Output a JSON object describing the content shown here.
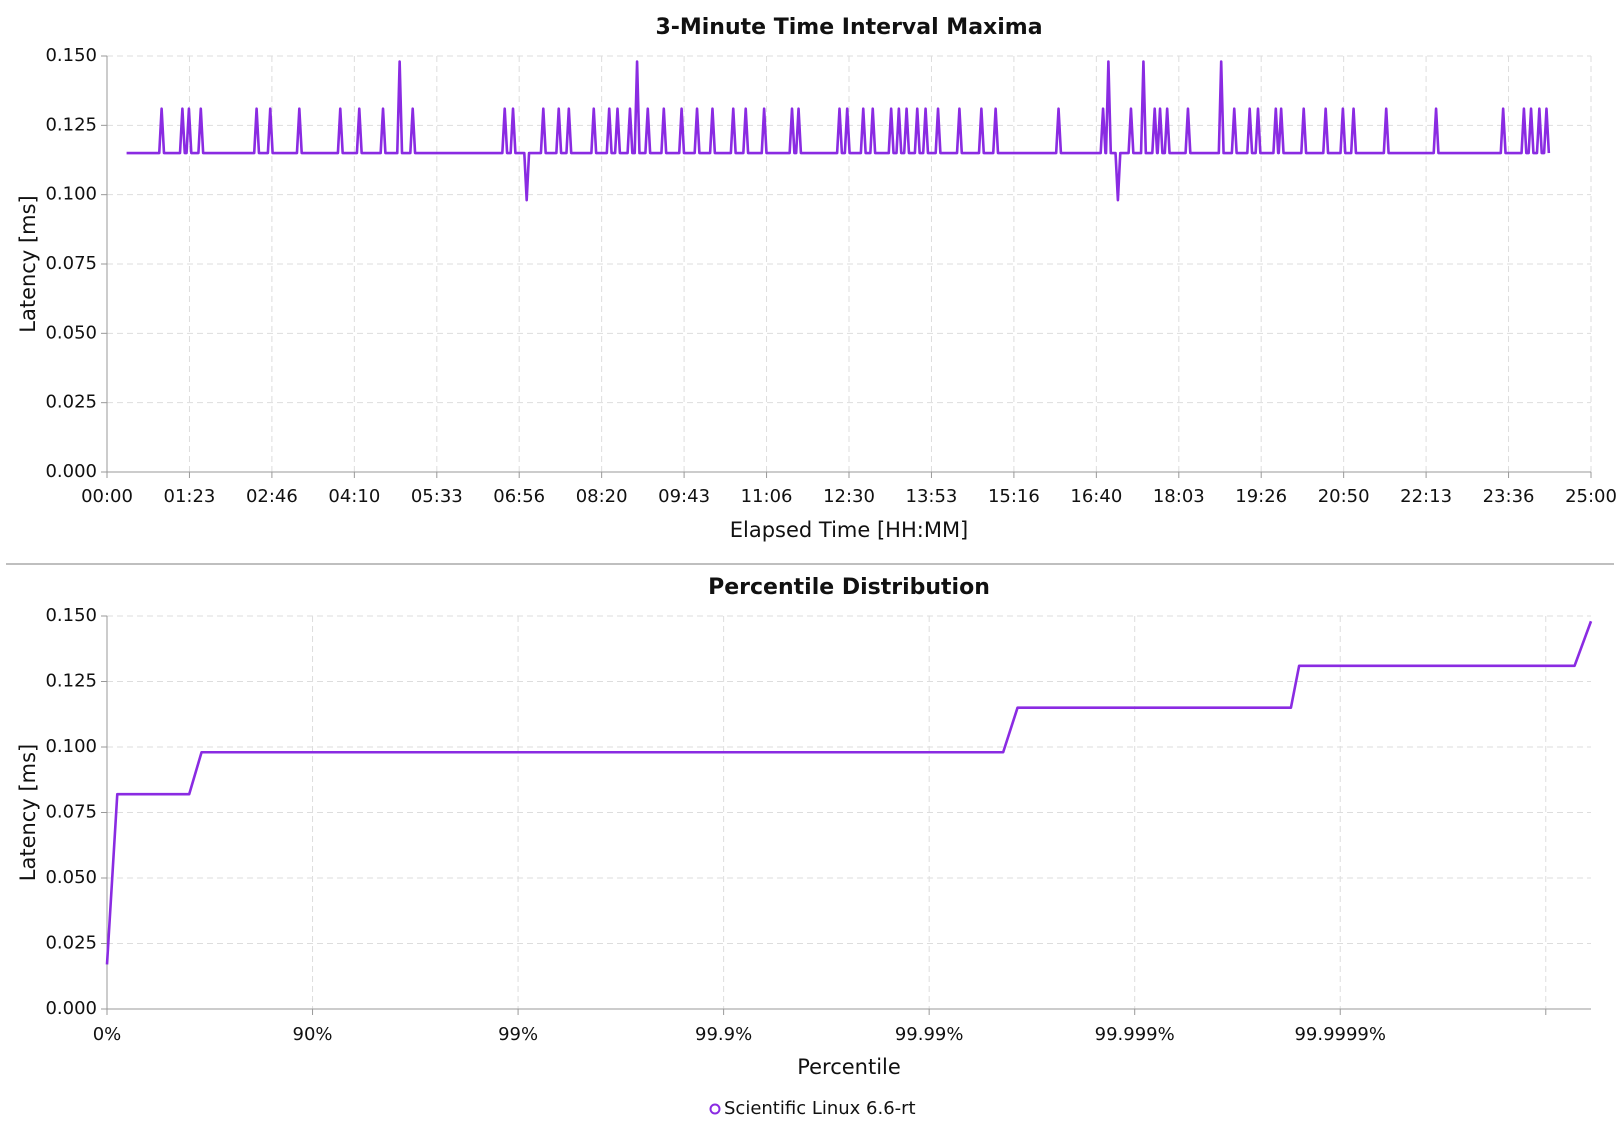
{
  "chart_data": [
    {
      "type": "line",
      "title": "3-Minute Time Interval Maxima",
      "x_label": "Elapsed Time [HH:MM]",
      "y_label": "Latency [ms]",
      "grid": true,
      "xlim": [
        0,
        25
      ],
      "ylim": [
        0,
        0.15
      ],
      "xticks": [
        {
          "value": 0,
          "label": "00:00"
        },
        {
          "value": 1.389,
          "label": "01:23"
        },
        {
          "value": 2.778,
          "label": "02:46"
        },
        {
          "value": 4.167,
          "label": "04:10"
        },
        {
          "value": 5.556,
          "label": "05:33"
        },
        {
          "value": 6.944,
          "label": "06:56"
        },
        {
          "value": 8.333,
          "label": "08:20"
        },
        {
          "value": 9.722,
          "label": "09:43"
        },
        {
          "value": 11.111,
          "label": "11:06"
        },
        {
          "value": 12.5,
          "label": "12:30"
        },
        {
          "value": 13.889,
          "label": "13:53"
        },
        {
          "value": 15.278,
          "label": "15:16"
        },
        {
          "value": 16.667,
          "label": "16:40"
        },
        {
          "value": 18.056,
          "label": "18:03"
        },
        {
          "value": 19.444,
          "label": "19:26"
        },
        {
          "value": 20.833,
          "label": "20:50"
        },
        {
          "value": 22.222,
          "label": "22:13"
        },
        {
          "value": 23.611,
          "label": "23:36"
        },
        {
          "value": 25,
          "label": "25:00"
        }
      ],
      "yticks": [
        {
          "value": 0,
          "label": "0.000"
        },
        0.025,
        {
          "value": 0.05,
          "label": "0.050"
        },
        0.075,
        {
          "value": 0.1,
          "label": "0.100"
        },
        0.125,
        {
          "value": 0.15,
          "label": "0.150"
        }
      ],
      "x": [
        0.33,
        0.88,
        0.92,
        0.96,
        1.23,
        1.27,
        1.31,
        1.34,
        1.38,
        1.42,
        1.54,
        1.58,
        1.62,
        2.48,
        2.52,
        2.56,
        2.71,
        2.75,
        2.79,
        3.2,
        3.24,
        3.28,
        3.89,
        3.93,
        3.97,
        4.21,
        4.25,
        4.29,
        4.61,
        4.65,
        4.69,
        4.89,
        4.93,
        4.97,
        5.11,
        5.15,
        5.19,
        6.66,
        6.7,
        6.74,
        6.8,
        6.84,
        6.88,
        7.03,
        7.07,
        7.11,
        7.31,
        7.35,
        7.39,
        7.57,
        7.61,
        7.65,
        7.74,
        7.78,
        7.82,
        8.16,
        8.2,
        8.24,
        8.42,
        8.46,
        8.5,
        8.56,
        8.6,
        8.64,
        8.77,
        8.81,
        8.85,
        8.89,
        8.93,
        8.97,
        9.07,
        9.11,
        9.15,
        9.34,
        9.38,
        9.42,
        9.64,
        9.68,
        9.72,
        9.9,
        9.94,
        9.98,
        10.16,
        10.2,
        10.24,
        10.51,
        10.55,
        10.59,
        10.72,
        10.76,
        10.8,
        11.03,
        11.07,
        11.11,
        11.5,
        11.54,
        11.58,
        11.61,
        11.65,
        11.69,
        12.3,
        12.34,
        12.38,
        12.43,
        12.47,
        12.51,
        12.7,
        12.74,
        12.78,
        12.86,
        12.9,
        12.94,
        13.17,
        13.21,
        13.25,
        13.3,
        13.34,
        13.38,
        13.43,
        13.47,
        13.51,
        13.61,
        13.65,
        13.69,
        13.75,
        13.79,
        13.83,
        13.96,
        14.0,
        14.04,
        14.32,
        14.36,
        14.4,
        14.69,
        14.73,
        14.77,
        14.93,
        14.97,
        15.01,
        15.99,
        16.03,
        16.07,
        16.74,
        16.78,
        16.82,
        16.83,
        16.87,
        16.91,
        16.99,
        17.03,
        17.07,
        17.21,
        17.25,
        17.29,
        17.42,
        17.46,
        17.5,
        17.61,
        17.65,
        17.69,
        17.7,
        17.74,
        17.78,
        17.82,
        17.86,
        17.9,
        18.17,
        18.21,
        18.25,
        18.73,
        18.77,
        18.81,
        18.95,
        18.99,
        19.03,
        19.21,
        19.25,
        19.29,
        19.35,
        19.39,
        19.43,
        19.65,
        19.69,
        19.73,
        19.74,
        19.78,
        19.82,
        20.12,
        20.16,
        20.2,
        20.49,
        20.53,
        20.57,
        20.78,
        20.82,
        20.86,
        20.96,
        21.0,
        21.04,
        21.51,
        21.55,
        21.59,
        22.35,
        22.39,
        22.43,
        23.48,
        23.52,
        23.56,
        23.83,
        23.87,
        23.91,
        23.95,
        23.99,
        24.03,
        24.09,
        24.13,
        24.17,
        24.21,
        24.25,
        24.29
      ],
      "series": [
        {
          "color": "#8a2be2",
          "values": [
            0.115,
            0.115,
            0.131,
            0.115,
            0.115,
            0.131,
            0.115,
            0.115,
            0.131,
            0.115,
            0.115,
            0.131,
            0.115,
            0.115,
            0.131,
            0.115,
            0.115,
            0.131,
            0.115,
            0.115,
            0.131,
            0.115,
            0.115,
            0.131,
            0.115,
            0.115,
            0.131,
            0.115,
            0.115,
            0.131,
            0.115,
            0.115,
            0.148,
            0.115,
            0.115,
            0.131,
            0.115,
            0.115,
            0.131,
            0.115,
            0.115,
            0.131,
            0.115,
            0.115,
            0.098,
            0.115,
            0.115,
            0.131,
            0.115,
            0.115,
            0.131,
            0.115,
            0.115,
            0.131,
            0.115,
            0.115,
            0.131,
            0.115,
            0.115,
            0.131,
            0.115,
            0.115,
            0.131,
            0.115,
            0.115,
            0.131,
            0.115,
            0.115,
            0.148,
            0.115,
            0.115,
            0.131,
            0.115,
            0.115,
            0.131,
            0.115,
            0.115,
            0.131,
            0.115,
            0.115,
            0.131,
            0.115,
            0.115,
            0.131,
            0.115,
            0.115,
            0.131,
            0.115,
            0.115,
            0.131,
            0.115,
            0.115,
            0.131,
            0.115,
            0.115,
            0.131,
            0.115,
            0.115,
            0.131,
            0.115,
            0.115,
            0.131,
            0.115,
            0.115,
            0.131,
            0.115,
            0.115,
            0.131,
            0.115,
            0.115,
            0.131,
            0.115,
            0.115,
            0.131,
            0.115,
            0.115,
            0.131,
            0.115,
            0.115,
            0.131,
            0.115,
            0.115,
            0.131,
            0.115,
            0.115,
            0.131,
            0.115,
            0.115,
            0.131,
            0.115,
            0.115,
            0.131,
            0.115,
            0.115,
            0.131,
            0.115,
            0.115,
            0.131,
            0.115,
            0.115,
            0.131,
            0.115,
            0.115,
            0.131,
            0.115,
            0.115,
            0.148,
            0.115,
            0.115,
            0.098,
            0.115,
            0.115,
            0.131,
            0.115,
            0.115,
            0.148,
            0.115,
            0.115,
            0.131,
            0.115,
            0.115,
            0.131,
            0.115,
            0.115,
            0.131,
            0.115,
            0.115,
            0.131,
            0.115,
            0.115,
            0.148,
            0.115,
            0.115,
            0.131,
            0.115,
            0.115,
            0.131,
            0.115,
            0.115,
            0.131,
            0.115,
            0.115,
            0.131,
            0.115,
            0.115,
            0.131,
            0.115,
            0.115,
            0.131,
            0.115,
            0.115,
            0.131,
            0.115,
            0.115,
            0.131,
            0.115,
            0.115,
            0.131,
            0.115,
            0.115,
            0.131,
            0.115,
            0.115,
            0.131,
            0.115,
            0.115,
            0.131,
            0.115,
            0.115,
            0.131,
            0.115,
            0.115,
            0.131,
            0.115,
            0.115,
            0.131,
            0.115,
            0.115,
            0.131,
            0.115
          ]
        }
      ]
    },
    {
      "type": "line",
      "title": "Percentile Distribution",
      "x_label": "Percentile",
      "y_label": "Latency [ms]",
      "grid": true,
      "xlim": [
        0,
        7.22
      ],
      "ylim": [
        0,
        0.15
      ],
      "xticks": [
        {
          "value": 0,
          "label": "0%"
        },
        {
          "value": 1,
          "label": "90%"
        },
        {
          "value": 2,
          "label": "99%"
        },
        {
          "value": 3,
          "label": "99.9%"
        },
        {
          "value": 4,
          "label": "99.99%"
        },
        {
          "value": 5,
          "label": "99.999%"
        },
        {
          "value": 6,
          "label": "99.9999%"
        },
        {
          "value": 7,
          "label": null
        }
      ],
      "yticks": [
        {
          "value": 0,
          "label": "0.000"
        },
        0.025,
        {
          "value": 0.05,
          "label": "0.050"
        },
        0.075,
        {
          "value": 0.1,
          "label": "0.100"
        },
        0.125,
        {
          "value": 0.15,
          "label": "0.150"
        }
      ],
      "x": [
        0,
        0.05,
        0.4,
        0.46,
        4.36,
        4.43,
        5.76,
        5.8,
        7.14,
        7.22
      ],
      "series": [
        {
          "name": "Scientific Linux 6.6-rt",
          "color": "#8a2be2",
          "values": [
            0.017,
            0.082,
            0.082,
            0.098,
            0.098,
            0.115,
            0.115,
            0.131,
            0.131,
            0.148
          ]
        }
      ]
    }
  ]
}
